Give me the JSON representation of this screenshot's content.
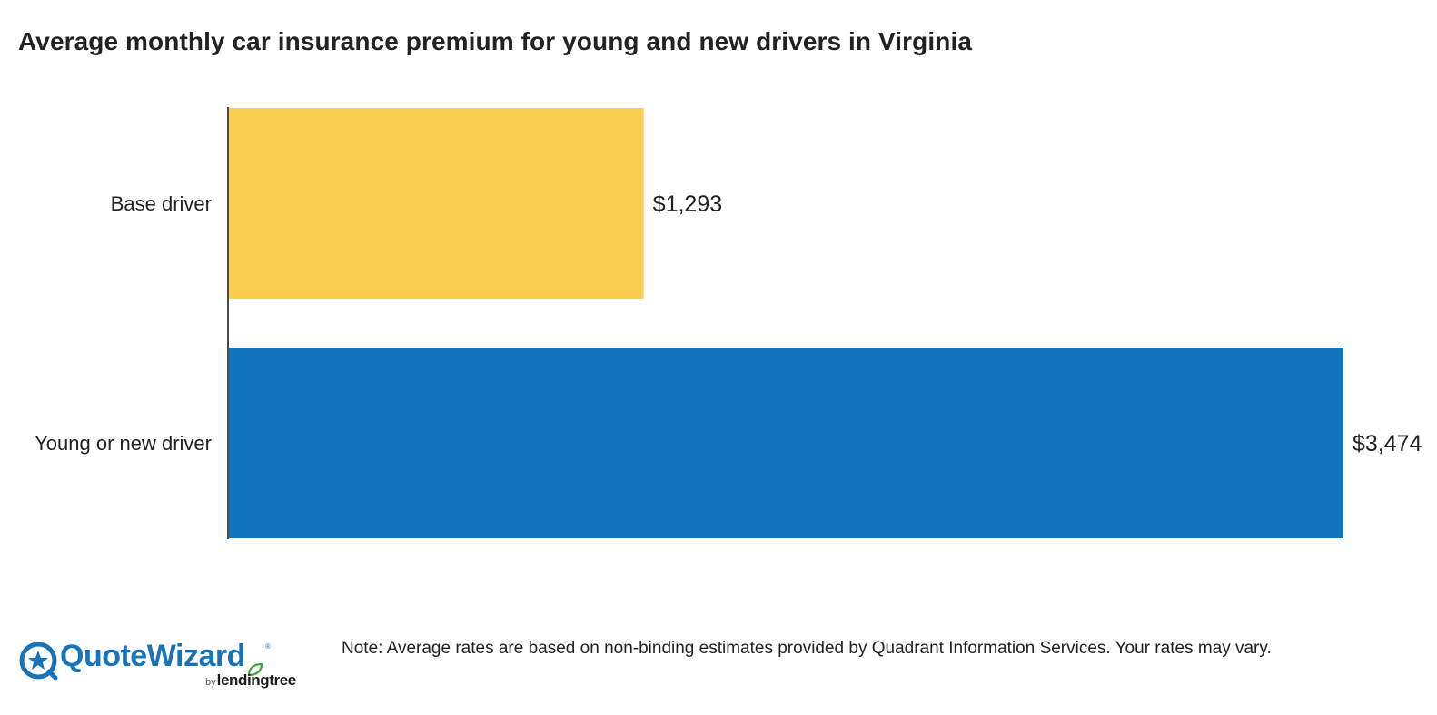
{
  "colors": {
    "base_bar": "#f9cf52",
    "young_bar": "#1173bc",
    "axis": "#111111",
    "brand_blue": "#1973b8",
    "brand_green": "#3aa935"
  },
  "chart_data": {
    "type": "bar",
    "orientation": "horizontal",
    "title": "Average monthly car insurance premium for young and new drivers in Virginia",
    "categories": [
      "Base driver",
      "Young or new driver"
    ],
    "values": [
      1293,
      3474
    ],
    "value_labels": [
      "$1,293",
      "$3,474"
    ],
    "xlim": [
      0,
      3474
    ],
    "grid": false,
    "legend": "none"
  },
  "footer": {
    "note": "Note: Average rates are based on non-binding estimates provided by Quadrant Information Services. Your rates may vary."
  },
  "logo": {
    "brand": "QuoteWizard",
    "registered": "®",
    "by": "by",
    "parent": "lendingtree",
    "icon": "quotewizard-star-icon"
  }
}
